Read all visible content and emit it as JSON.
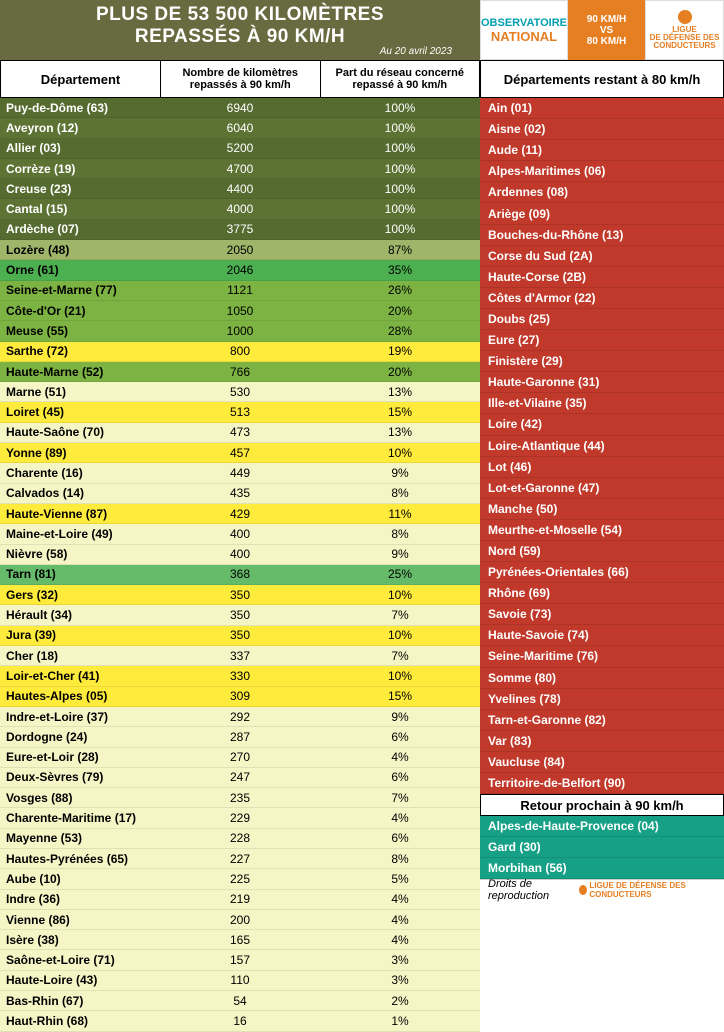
{
  "header": {
    "title_l1": "PLUS DE 53 500 KILOMÈTRES",
    "title_l2": "REPASSÉS À 90 KM/H",
    "date": "Au 20 avril 2023",
    "obs_l1": "OBSERVATOIRE",
    "obs_l2": "NATIONAL",
    "speed_l1": "90 KM/H",
    "speed_l2": "VS",
    "speed_l3": "80 KM/H",
    "ligue_l1": "LIGUE",
    "ligue_l2": "DE DÉFENSE DES",
    "ligue_l3": "CONDUCTEURS"
  },
  "left_head": {
    "c1": "Département",
    "c2": "Nombre de kilomètres repassés à 90 km/h",
    "c3": "Part du réseau concerné repassé à 90 km/h"
  },
  "right_head": "Départements restant à 80 km/h",
  "right_head2": "Retour prochain à 90 km/h",
  "footer": "Droits de reproduction",
  "footer_logo": "LIGUE DE DÉFENSE DES CONDUCTEURS",
  "colors": {
    "dark_green": {
      "bg": "#556b2f",
      "fg": "#ffffff"
    },
    "dark_green_alt": {
      "bg": "#5d7334",
      "fg": "#ffffff"
    },
    "pale_green": {
      "bg": "#9fb56a",
      "fg": "#000000"
    },
    "bright_green": {
      "bg": "#4caf50",
      "fg": "#000000"
    },
    "med_green": {
      "bg": "#7cb342",
      "fg": "#000000"
    },
    "yellow": {
      "bg": "#ffeb3b",
      "fg": "#000000"
    },
    "pale_yellow": {
      "bg": "#f5f5c6",
      "fg": "#000000"
    },
    "green_cell": {
      "bg": "#66bb6a",
      "fg": "#000000"
    }
  },
  "rows": [
    {
      "d": "Puy-de-Dôme (63)",
      "km": "6940",
      "p": "100%",
      "c": "dark_green"
    },
    {
      "d": "Aveyron (12)",
      "km": "6040",
      "p": "100%",
      "c": "dark_green_alt"
    },
    {
      "d": "Allier (03)",
      "km": "5200",
      "p": "100%",
      "c": "dark_green"
    },
    {
      "d": "Corrèze (19)",
      "km": "4700",
      "p": "100%",
      "c": "dark_green_alt"
    },
    {
      "d": "Creuse (23)",
      "km": "4400",
      "p": "100%",
      "c": "dark_green"
    },
    {
      "d": "Cantal (15)",
      "km": "4000",
      "p": "100%",
      "c": "dark_green_alt"
    },
    {
      "d": "Ardèche (07)",
      "km": "3775",
      "p": "100%",
      "c": "dark_green"
    },
    {
      "d": "Lozère (48)",
      "km": "2050",
      "p": "87%",
      "c": "pale_green"
    },
    {
      "d": "Orne (61)",
      "km": "2046",
      "p": "35%",
      "c": "bright_green"
    },
    {
      "d": "Seine-et-Marne (77)",
      "km": "1121",
      "p": "26%",
      "c": "med_green"
    },
    {
      "d": "Côte-d'Or (21)",
      "km": "1050",
      "p": "20%",
      "c": "med_green"
    },
    {
      "d": "Meuse (55)",
      "km": "1000",
      "p": "28%",
      "c": "med_green"
    },
    {
      "d": "Sarthe (72)",
      "km": "800",
      "p": "19%",
      "c": "yellow"
    },
    {
      "d": "Haute-Marne (52)",
      "km": "766",
      "p": "20%",
      "c": "med_green"
    },
    {
      "d": "Marne (51)",
      "km": "530",
      "p": "13%",
      "c": "pale_yellow"
    },
    {
      "d": "Loiret (45)",
      "km": "513",
      "p": "15%",
      "c": "yellow"
    },
    {
      "d": "Haute-Saône (70)",
      "km": "473",
      "p": "13%",
      "c": "pale_yellow"
    },
    {
      "d": "Yonne (89)",
      "km": "457",
      "p": "10%",
      "c": "yellow"
    },
    {
      "d": "Charente (16)",
      "km": "449",
      "p": "9%",
      "c": "pale_yellow"
    },
    {
      "d": "Calvados (14)",
      "km": "435",
      "p": "8%",
      "c": "pale_yellow"
    },
    {
      "d": "Haute-Vienne (87)",
      "km": "429",
      "p": "11%",
      "c": "yellow"
    },
    {
      "d": "Maine-et-Loire (49)",
      "km": "400",
      "p": "8%",
      "c": "pale_yellow"
    },
    {
      "d": "Nièvre (58)",
      "km": "400",
      "p": "9%",
      "c": "pale_yellow"
    },
    {
      "d": "Tarn (81)",
      "km": "368",
      "p": "25%",
      "c": "green_cell"
    },
    {
      "d": "Gers (32)",
      "km": "350",
      "p": "10%",
      "c": "yellow"
    },
    {
      "d": "Hérault (34)",
      "km": "350",
      "p": "7%",
      "c": "pale_yellow"
    },
    {
      "d": "Jura (39)",
      "km": "350",
      "p": "10%",
      "c": "yellow"
    },
    {
      "d": "Cher (18)",
      "km": "337",
      "p": "7%",
      "c": "pale_yellow"
    },
    {
      "d": "Loir-et-Cher (41)",
      "km": "330",
      "p": "10%",
      "c": "yellow"
    },
    {
      "d": "Hautes-Alpes (05)",
      "km": "309",
      "p": "15%",
      "c": "yellow"
    },
    {
      "d": "Indre-et-Loire (37)",
      "km": "292",
      "p": "9%",
      "c": "pale_yellow"
    },
    {
      "d": "Dordogne (24)",
      "km": "287",
      "p": "6%",
      "c": "pale_yellow"
    },
    {
      "d": "Eure-et-Loir (28)",
      "km": "270",
      "p": "4%",
      "c": "pale_yellow"
    },
    {
      "d": "Deux-Sèvres (79)",
      "km": "247",
      "p": "6%",
      "c": "pale_yellow"
    },
    {
      "d": "Vosges (88)",
      "km": "235",
      "p": "7%",
      "c": "pale_yellow"
    },
    {
      "d": "Charente-Maritime (17)",
      "km": "229",
      "p": "4%",
      "c": "pale_yellow"
    },
    {
      "d": "Mayenne (53)",
      "km": "228",
      "p": "6%",
      "c": "pale_yellow"
    },
    {
      "d": "Hautes-Pyrénées (65)",
      "km": "227",
      "p": "8%",
      "c": "pale_yellow"
    },
    {
      "d": "Aube (10)",
      "km": "225",
      "p": "5%",
      "c": "pale_yellow"
    },
    {
      "d": "Indre (36)",
      "km": "219",
      "p": "4%",
      "c": "pale_yellow"
    },
    {
      "d": "Vienne (86)",
      "km": "200",
      "p": "4%",
      "c": "pale_yellow"
    },
    {
      "d": "Isère (38)",
      "km": "165",
      "p": "4%",
      "c": "pale_yellow"
    },
    {
      "d": "Saône-et-Loire (71)",
      "km": "157",
      "p": "3%",
      "c": "pale_yellow"
    },
    {
      "d": "Haute-Loire (43)",
      "km": "110",
      "p": "3%",
      "c": "pale_yellow"
    },
    {
      "d": "Bas-Rhin (67)",
      "km": "54",
      "p": "2%",
      "c": "pale_yellow"
    },
    {
      "d": "Haut-Rhin (68)",
      "km": "16",
      "p": "1%",
      "c": "pale_yellow"
    }
  ],
  "red_rows": [
    "Ain (01)",
    "Aisne (02)",
    "Aude (11)",
    "Alpes-Maritimes (06)",
    "Ardennes (08)",
    "Ariège (09)",
    "Bouches-du-Rhône (13)",
    "Corse du Sud (2A)",
    "Haute-Corse (2B)",
    "Côtes d'Armor (22)",
    "Doubs (25)",
    "Eure (27)",
    "Finistère (29)",
    "Haute-Garonne (31)",
    "Ille-et-Vilaine (35)",
    "Loire (42)",
    "Loire-Atlantique (44)",
    "Lot (46)",
    "Lot-et-Garonne (47)",
    "Manche (50)",
    "Meurthe-et-Moselle (54)",
    "Nord (59)",
    "Pyrénées-Orientales (66)",
    "Rhône (69)",
    "Savoie (73)",
    "Haute-Savoie (74)",
    "Seine-Maritime (76)",
    "Somme (80)",
    "Yvelines (78)",
    "Tarn-et-Garonne (82)",
    "Var (83)",
    "Vaucluse (84)",
    "Territoire-de-Belfort (90)"
  ],
  "teal_rows": [
    "Alpes-de-Haute-Provence (04)",
    "Gard (30)",
    "Morbihan (56)"
  ]
}
